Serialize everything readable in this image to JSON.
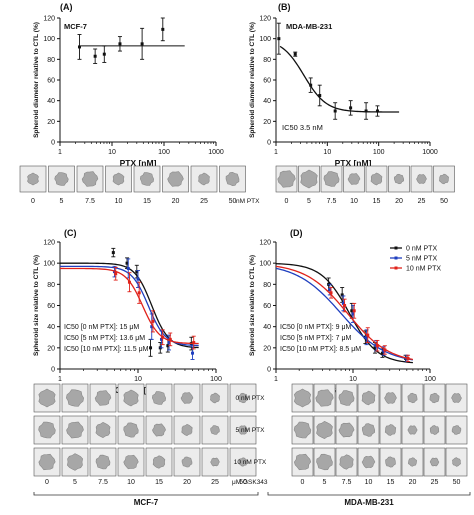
{
  "figure": {
    "strip_labels": {
      "top": [
        "0",
        "5",
        "7.5",
        "10",
        "15",
        "20",
        "25",
        "50"
      ],
      "top_unit": "nM PTX",
      "bottom": [
        "0",
        "5",
        "7.5",
        "10",
        "15",
        "20",
        "25",
        "50"
      ],
      "bottom_unit": "μM GSK343",
      "row_labels": [
        "0 nM PTX",
        "5 nM PTX",
        "10 nM PTX"
      ],
      "group_left": "MCF-7",
      "group_right": "MDA-MB-231"
    },
    "colors": {
      "black": "#111111",
      "blue": "#1f3fbf",
      "red": "#e0231b",
      "spheroid": "#a7a7a7",
      "tile": "#ececec"
    }
  },
  "chart_data": [
    {
      "type": "scatter",
      "panel_label": "(A)",
      "cell_line": "MCF-7",
      "xlabel": "PTX [nM]",
      "ylabel": "Spheroid diameter relative to CTL (%)",
      "xscale": "log",
      "xlim": [
        1,
        1000
      ],
      "ylim": [
        0,
        120
      ],
      "xticks": [
        "1",
        "10",
        "100",
        "1000"
      ],
      "yticks": [
        "0",
        "20",
        "40",
        "60",
        "80",
        "100",
        "120"
      ],
      "series": [
        {
          "x": [
            2.5,
            5,
            7.5,
            15,
            40,
            100
          ],
          "y": [
            92,
            83,
            85,
            95,
            95,
            109
          ],
          "err": [
            12,
            7,
            8,
            7,
            15,
            11
          ],
          "color": "#111111"
        }
      ],
      "fit": {
        "kind": "flat",
        "y": 93,
        "x_range": [
          2.5,
          250
        ]
      }
    },
    {
      "type": "line",
      "panel_label": "(B)",
      "cell_line": "MDA-MB-231",
      "xlabel": "PTX [nM]",
      "ylabel": "Spheroid diameter relative to CTL (%)",
      "xscale": "log",
      "xlim": [
        1,
        1000
      ],
      "ylim": [
        0,
        120
      ],
      "xticks": [
        "1",
        "10",
        "100",
        "1000"
      ],
      "yticks": [
        "0",
        "20",
        "40",
        "60",
        "80",
        "100",
        "120"
      ],
      "annotation": "IC50 3.5 nM",
      "series": [
        {
          "x": [
            1.2,
            2.5,
            5,
            7.5,
            15,
            30,
            60,
            100
          ],
          "y": [
            100,
            85,
            55,
            45,
            30,
            33,
            30,
            30
          ],
          "err": [
            15,
            2,
            7,
            10,
            8,
            7,
            8,
            5
          ],
          "color": "#111111",
          "fit": {
            "top": 100,
            "bottom": 29,
            "ic50": 3.5,
            "hill": 2,
            "x_range": [
              1.2,
              250
            ]
          }
        }
      ]
    },
    {
      "type": "line",
      "panel_label": "(C)",
      "cell_line": "MCF-7",
      "xlabel": "GS343 [μM]",
      "ylabel": "Spheroid size relative to CTL (%)",
      "xscale": "log",
      "xlim": [
        1,
        100
      ],
      "ylim": [
        0,
        120
      ],
      "xticks": [
        "1",
        "10",
        "100"
      ],
      "yticks": [
        "0",
        "20",
        "40",
        "60",
        "80",
        "100",
        "120"
      ],
      "annotations": [
        "IC50 [0 nM PTX]: 15 μM",
        "IC50 [5 nM PTX]: 13.6 μM",
        "IC50 [10 nM PTX]: 11.5 μM"
      ],
      "series": [
        {
          "name": "0 nM PTX",
          "color": "#111111",
          "x": [
            5,
            7.5,
            10,
            15,
            20,
            25,
            50
          ],
          "y": [
            110,
            100,
            92,
            20,
            20,
            22,
            24
          ],
          "err": [
            4,
            5,
            6,
            8,
            5,
            6,
            6
          ],
          "fit": {
            "top": 100,
            "bottom": 20,
            "ic50": 15,
            "hill": 4
          }
        },
        {
          "name": "5 nM PTX",
          "color": "#1f3fbf",
          "x": [
            5,
            7.5,
            10,
            15,
            20,
            25,
            50
          ],
          "y": [
            92,
            95,
            85,
            40,
            28,
            25,
            15
          ],
          "err": [
            5,
            9,
            8,
            12,
            8,
            7,
            6
          ],
          "fit": {
            "top": 97,
            "bottom": 22,
            "ic50": 13.6,
            "hill": 4
          }
        },
        {
          "name": "10 nM PTX",
          "color": "#e0231b",
          "x": [
            5,
            7.5,
            10,
            15,
            20,
            25,
            50
          ],
          "y": [
            90,
            82,
            72,
            45,
            30,
            28,
            25
          ],
          "err": [
            6,
            9,
            10,
            10,
            7,
            6,
            6
          ],
          "fit": {
            "top": 95,
            "bottom": 24,
            "ic50": 11.5,
            "hill": 4
          }
        }
      ]
    },
    {
      "type": "line",
      "panel_label": "(D)",
      "cell_line": "MDA-MB-231",
      "xlabel": "GS343 [μM]",
      "ylabel": "Spheroid size relative to CTL (%)",
      "xscale": "log",
      "xlim": [
        1,
        100
      ],
      "ylim": [
        0,
        120
      ],
      "xticks": [
        "1",
        "10",
        "100"
      ],
      "yticks": [
        "0",
        "20",
        "40",
        "60",
        "80",
        "100",
        "120"
      ],
      "legend": "top-right",
      "annotations": [
        "IC50 [0 nM PTX]: 9 μM",
        "IC50 [5 nM PTX]: 7 μM",
        "IC50 [10 nM PTX]: 8.5 μM"
      ],
      "series": [
        {
          "name": "0 nM PTX",
          "color": "#111111",
          "x": [
            5,
            7.5,
            10,
            15,
            20,
            25,
            50
          ],
          "y": [
            80,
            70,
            55,
            30,
            20,
            15,
            10
          ],
          "err": [
            6,
            7,
            7,
            6,
            5,
            4,
            3
          ],
          "fit": {
            "top": 100,
            "bottom": 5,
            "ic50": 9,
            "hill": 2.4
          }
        },
        {
          "name": "5 nM PTX",
          "color": "#1f3fbf",
          "x": [
            5,
            7.5,
            10,
            15,
            20,
            25,
            50
          ],
          "y": [
            75,
            62,
            52,
            30,
            22,
            17,
            10
          ],
          "err": [
            5,
            7,
            8,
            7,
            5,
            4,
            3
          ],
          "fit": {
            "top": 100,
            "bottom": 5,
            "ic50": 7,
            "hill": 1.5
          }
        },
        {
          "name": "10 nM PTX",
          "color": "#e0231b",
          "x": [
            5,
            7.5,
            10,
            15,
            20,
            25,
            50
          ],
          "y": [
            72,
            60,
            55,
            32,
            22,
            18,
            10
          ],
          "err": [
            5,
            6,
            7,
            7,
            5,
            4,
            3
          ],
          "fit": {
            "top": 100,
            "bottom": 5,
            "ic50": 8.5,
            "hill": 1.6
          }
        }
      ]
    }
  ]
}
